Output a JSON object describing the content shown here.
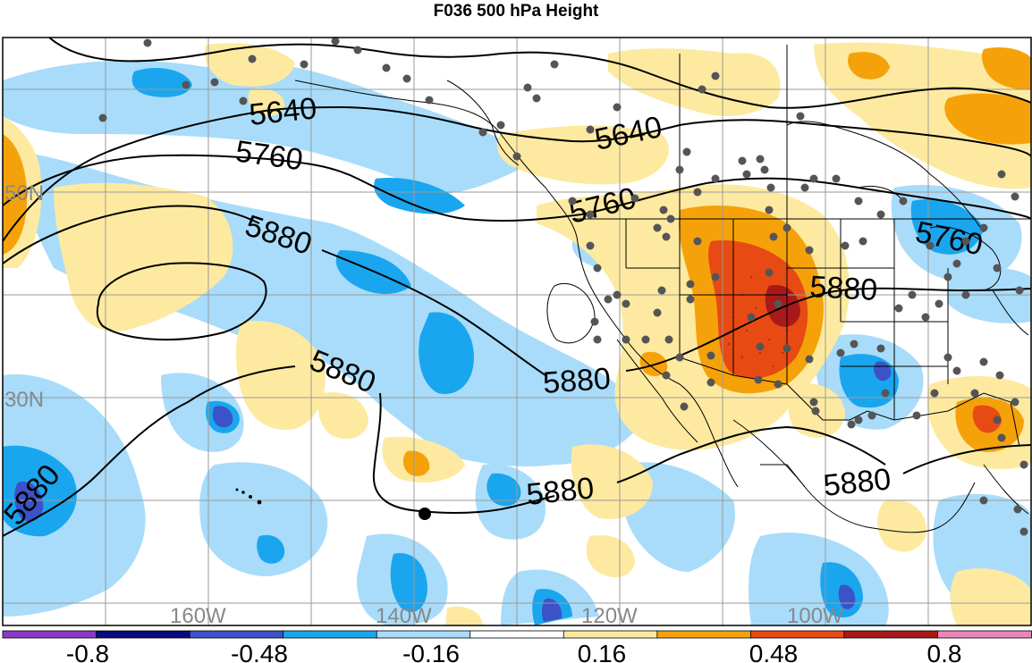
{
  "title": "F036 500 hPa Height",
  "map": {
    "lat_labels": [
      "50N",
      "30N"
    ],
    "lon_labels": [
      "160W",
      "140W",
      "120W",
      "100W"
    ],
    "contour_labels": [
      "5640",
      "5640",
      "5760",
      "5760",
      "5760",
      "5880",
      "5880",
      "5880",
      "5880",
      "5880",
      "5880",
      "5880"
    ],
    "colors": {
      "grid": "#9a9a9a",
      "axis_label": "#888888",
      "contour": "#000000",
      "station": "#555555"
    }
  },
  "colorbar": {
    "tick_labels": [
      "-0.8",
      "-0.48",
      "-0.16",
      "0.16",
      "0.48",
      "0.8"
    ],
    "colors": [
      "#8a3ac8",
      "#0a0a80",
      "#3c52c8",
      "#1aa6ee",
      "#a8dcfa",
      "#ffffff",
      "#fdeaa0",
      "#f5a20a",
      "#e84a14",
      "#a81a1a",
      "#ea86b8"
    ]
  }
}
